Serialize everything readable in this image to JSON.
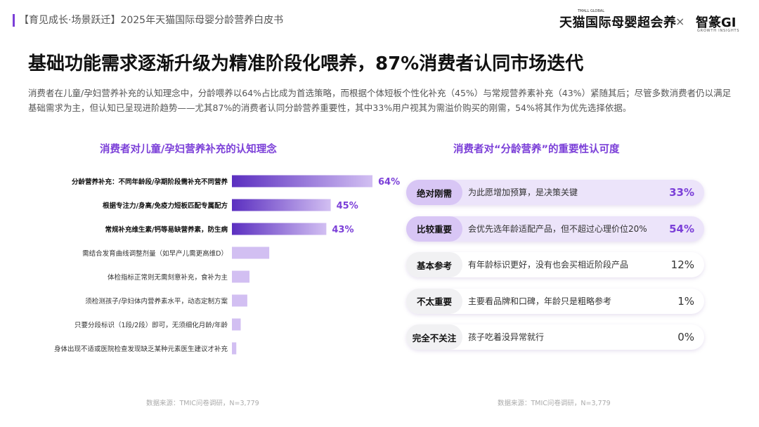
{
  "header": {
    "report_title": "【育见成长·场景跃迁】2025年天猫国际母婴分龄营养白皮书",
    "brand_logo": "天猫国际母婴超会养",
    "brand_logo_small": "TMALL GLOBAL",
    "separator": "×",
    "partner_logo": "智篆GI",
    "partner_sub": "GROWTH INSIGHTS"
  },
  "headline": "基础功能需求逐渐升级为精准阶段化喂养，87%消费者认同市场迭代",
  "description": "消费者在儿童/孕妇营养补充的认知理念中，分龄喂养以64%占比成为首选策略，而根据个体短板个性化补充（45%）与常规营养素补充（43%）紧随其后；尽管多数消费者仍以满足基础需求为主，但认知已呈现进阶趋势——尤其87%的消费者认同分龄营养重要性，其中33%用户视其为需溢价购买的刚需，54%将其作为优先选择依据。",
  "chart_data": [
    {
      "type": "bar",
      "orientation": "horizontal",
      "title": "消费者对儿童/孕妇营养补充的认知理念",
      "categories": [
        "分龄营养补充：不同年龄段/孕期阶段需补充不同营养",
        "根据专注力/身高/免疫力短板匹配专属配方",
        "常规补充维生素/钙等易缺营养素，防生病",
        "需结合发育曲线调整剂量（如早产儿需更高维D）",
        "体检指标正常则无需刻意补充，食补为主",
        "须检测孩子/孕妇体内营养素水平，动态定制方案",
        "只要分段标识（1段/2段）即可，无须细化月龄/年龄",
        "身体出现不适或医院检查发现缺乏某种元素医生建议才补充"
      ],
      "values": [
        64,
        45,
        43,
        17,
        8,
        7,
        4,
        2
      ],
      "value_labels": [
        "64%",
        "45%",
        "43%",
        "",
        "",
        "",
        "",
        ""
      ],
      "highlight_count": 3,
      "colors": {
        "strong": "#7b3fd8",
        "light": "#d2bff2"
      },
      "xlim": [
        0,
        100
      ],
      "source": "数据来源：TMIC问卷调研，N=3,779"
    },
    {
      "type": "table",
      "title": "消费者对“分龄营养”的重要性认可度",
      "rows": [
        {
          "level": "绝对刚需",
          "description": "为此愿增加预算，是决策关键",
          "value": "33%",
          "highlight": true
        },
        {
          "level": "比较重要",
          "description": "会优先选年龄适配产品，但不超过心理价位20%",
          "value": "54%",
          "highlight": true
        },
        {
          "level": "基本参考",
          "description": "有年龄标识更好，没有也会买相近阶段产品",
          "value": "12%",
          "highlight": false
        },
        {
          "level": "不太重要",
          "description": "主要看品牌和口碑，年龄只是粗略参考",
          "value": "1%",
          "highlight": false
        },
        {
          "level": "完全不关注",
          "description": "孩子吃着没异常就行",
          "value": "0%",
          "highlight": false
        }
      ],
      "source": "数据来源：TMIC问卷调研，N=3,779"
    }
  ]
}
